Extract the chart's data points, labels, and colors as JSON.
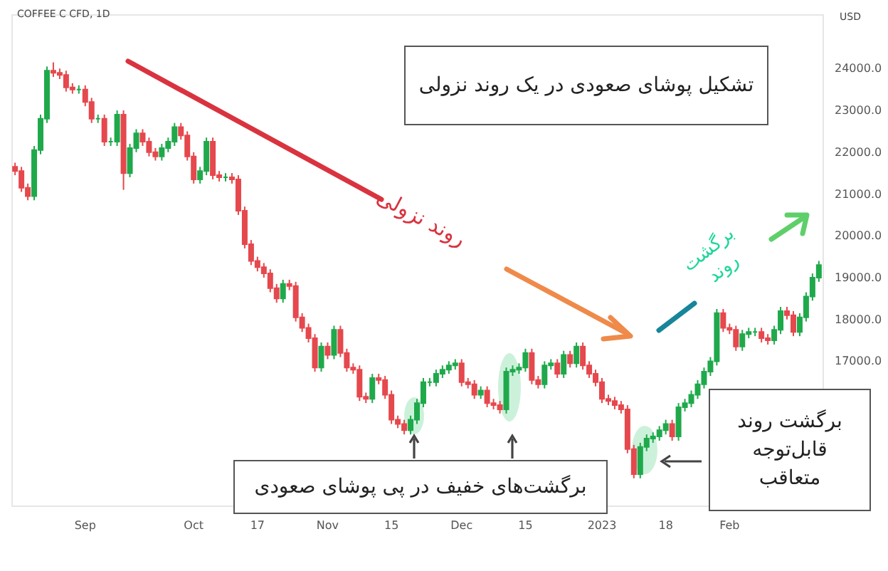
{
  "chart_data": {
    "type": "candlestick",
    "title": "COFFEE C CFD, 1D",
    "ylabel": "USD",
    "categories": [
      null,
      null,
      null,
      null,
      null,
      null,
      null,
      null,
      null,
      null,
      null,
      "Sep",
      null,
      null,
      null,
      null,
      null,
      null,
      null,
      null,
      null,
      null,
      null,
      null,
      null,
      null,
      null,
      null,
      "Oct",
      null,
      null,
      null,
      null,
      null,
      null,
      null,
      null,
      null,
      "17",
      null,
      null,
      null,
      null,
      null,
      null,
      null,
      null,
      null,
      null,
      "Nov",
      null,
      null,
      null,
      null,
      null,
      null,
      null,
      null,
      null,
      "15",
      null,
      null,
      null,
      null,
      null,
      null,
      null,
      null,
      null,
      null,
      "Dec",
      null,
      null,
      null,
      null,
      null,
      null,
      null,
      null,
      null,
      "15",
      null,
      null,
      null,
      null,
      null,
      null,
      null,
      null,
      null,
      null,
      null,
      "2023",
      null,
      null,
      null,
      null,
      null,
      null,
      null,
      null,
      null,
      "18",
      null,
      null,
      null,
      null,
      null,
      null,
      null,
      null,
      null,
      "Feb",
      null,
      null,
      null,
      null,
      null,
      null,
      null,
      null,
      null,
      null,
      null,
      null,
      null,
      null
    ],
    "ohlc": [
      [
        21650,
        21750,
        21450,
        21550
      ],
      [
        21550,
        21650,
        21050,
        21150
      ],
      [
        21150,
        21250,
        20850,
        20950
      ],
      [
        20950,
        22150,
        20850,
        22050
      ],
      [
        22050,
        22900,
        21950,
        22800
      ],
      [
        22800,
        24050,
        22700,
        23950
      ],
      [
        23950,
        24150,
        23800,
        23900
      ],
      [
        23900,
        24000,
        23750,
        23850
      ],
      [
        23850,
        23950,
        23450,
        23550
      ],
      [
        23550,
        23650,
        23400,
        23500
      ],
      [
        23500,
        23600,
        23400,
        23500
      ],
      [
        23500,
        23600,
        23100,
        23200
      ],
      [
        23200,
        23300,
        22700,
        22800
      ],
      [
        22800,
        22900,
        22700,
        22800
      ],
      [
        22800,
        22900,
        22150,
        22250
      ],
      [
        22250,
        22350,
        22150,
        22250
      ],
      [
        22250,
        23000,
        22150,
        22900
      ],
      [
        22900,
        23000,
        21100,
        21500
      ],
      [
        21500,
        22200,
        21400,
        22100
      ],
      [
        22100,
        22550,
        22000,
        22450
      ],
      [
        22450,
        22550,
        22150,
        22250
      ],
      [
        22250,
        22350,
        21900,
        22000
      ],
      [
        22000,
        22100,
        21800,
        21900
      ],
      [
        21900,
        22200,
        21800,
        22100
      ],
      [
        22100,
        22350,
        22000,
        22250
      ],
      [
        22250,
        22700,
        22150,
        22600
      ],
      [
        22600,
        22700,
        22300,
        22400
      ],
      [
        22400,
        22500,
        21800,
        21900
      ],
      [
        21900,
        22000,
        21250,
        21350
      ],
      [
        21350,
        21650,
        21250,
        21550
      ],
      [
        21550,
        22350,
        21450,
        22250
      ],
      [
        22250,
        22350,
        21350,
        21450
      ],
      [
        21450,
        21550,
        21300,
        21400
      ],
      [
        21400,
        21500,
        21300,
        21400
      ],
      [
        21400,
        21500,
        21250,
        21350
      ],
      [
        21350,
        21450,
        20500,
        20600
      ],
      [
        20600,
        20700,
        19700,
        19800
      ],
      [
        19800,
        19900,
        19300,
        19400
      ],
      [
        19400,
        19500,
        19150,
        19250
      ],
      [
        19250,
        19350,
        19000,
        19100
      ],
      [
        19100,
        19200,
        18650,
        18750
      ],
      [
        18750,
        18850,
        18400,
        18500
      ],
      [
        18500,
        18950,
        18400,
        18850
      ],
      [
        18850,
        18950,
        18700,
        18800
      ],
      [
        18800,
        18900,
        17950,
        18050
      ],
      [
        18050,
        18150,
        17700,
        17800
      ],
      [
        17800,
        17900,
        17450,
        17550
      ],
      [
        17550,
        17650,
        16750,
        16850
      ],
      [
        16850,
        17450,
        16750,
        17350
      ],
      [
        17350,
        17450,
        17050,
        17150
      ],
      [
        17150,
        17850,
        17050,
        17750
      ],
      [
        17750,
        17850,
        17100,
        17200
      ],
      [
        17200,
        17300,
        16750,
        16850
      ],
      [
        16850,
        16950,
        16700,
        16800
      ],
      [
        16800,
        16900,
        16050,
        16150
      ],
      [
        16150,
        16250,
        16000,
        16100
      ],
      [
        16100,
        16700,
        16000,
        16600
      ],
      [
        16600,
        16700,
        16450,
        16550
      ],
      [
        16550,
        16650,
        16100,
        16200
      ],
      [
        16200,
        16300,
        15500,
        15600
      ],
      [
        15600,
        15700,
        15400,
        15500
      ],
      [
        15500,
        15600,
        15250,
        15350
      ],
      [
        15350,
        15700,
        15250,
        15600
      ],
      [
        15600,
        16100,
        15500,
        16000
      ],
      [
        16000,
        16600,
        15900,
        16500
      ],
      [
        16500,
        16600,
        16400,
        16500
      ],
      [
        16500,
        16800,
        16400,
        16700
      ],
      [
        16700,
        16900,
        16600,
        16800
      ],
      [
        16800,
        17000,
        16700,
        16900
      ],
      [
        16900,
        17050,
        16800,
        16950
      ],
      [
        16950,
        17050,
        16400,
        16500
      ],
      [
        16500,
        16600,
        16350,
        16450
      ],
      [
        16450,
        16550,
        16100,
        16200
      ],
      [
        16200,
        16400,
        16100,
        16300
      ],
      [
        16300,
        16400,
        15900,
        16000
      ],
      [
        16000,
        16100,
        15850,
        15950
      ],
      [
        15950,
        16050,
        15750,
        15850
      ],
      [
        15850,
        16850,
        15750,
        16750
      ],
      [
        16750,
        16900,
        16650,
        16800
      ],
      [
        16800,
        16950,
        16700,
        16850
      ],
      [
        16850,
        17300,
        16750,
        17200
      ],
      [
        17200,
        17300,
        16450,
        16550
      ],
      [
        16550,
        16650,
        16350,
        16450
      ],
      [
        16450,
        17000,
        16350,
        16900
      ],
      [
        16900,
        17050,
        16800,
        16950
      ],
      [
        16950,
        17050,
        16600,
        16700
      ],
      [
        16700,
        17250,
        16600,
        17150
      ],
      [
        17150,
        17250,
        16850,
        16950
      ],
      [
        16950,
        17450,
        16850,
        17350
      ],
      [
        17350,
        17450,
        16800,
        16900
      ],
      [
        16900,
        17000,
        16600,
        16700
      ],
      [
        16700,
        16800,
        16400,
        16500
      ],
      [
        16500,
        16600,
        16000,
        16100
      ],
      [
        16100,
        16200,
        15950,
        16050
      ],
      [
        16050,
        16150,
        15850,
        15950
      ],
      [
        15950,
        16050,
        15750,
        15850
      ],
      [
        15850,
        15950,
        14800,
        14900
      ],
      [
        14900,
        15000,
        14200,
        14300
      ],
      [
        14300,
        15050,
        14200,
        14950
      ],
      [
        14950,
        15250,
        14850,
        15150
      ],
      [
        15150,
        15300,
        15050,
        15200
      ],
      [
        15200,
        15450,
        15100,
        15350
      ],
      [
        15350,
        15600,
        15250,
        15500
      ],
      [
        15500,
        15600,
        15100,
        15200
      ],
      [
        15200,
        16000,
        15100,
        15900
      ],
      [
        15900,
        16100,
        15800,
        16000
      ],
      [
        16000,
        16300,
        15900,
        16200
      ],
      [
        16200,
        16550,
        16100,
        16450
      ],
      [
        16450,
        16850,
        16350,
        16750
      ],
      [
        16750,
        17100,
        16650,
        17000
      ],
      [
        17000,
        18250,
        16900,
        18150
      ],
      [
        18150,
        18250,
        17700,
        17800
      ],
      [
        17800,
        17900,
        17650,
        17750
      ],
      [
        17750,
        17850,
        17250,
        17350
      ],
      [
        17350,
        17750,
        17250,
        17650
      ],
      [
        17650,
        17800,
        17550,
        17700
      ],
      [
        17700,
        17800,
        17600,
        17700
      ],
      [
        17700,
        17800,
        17450,
        17550
      ],
      [
        17550,
        17650,
        17400,
        17500
      ],
      [
        17500,
        17850,
        17400,
        17750
      ],
      [
        17750,
        18300,
        17650,
        18200
      ],
      [
        18200,
        18300,
        18000,
        18100
      ],
      [
        18100,
        18200,
        17600,
        17700
      ],
      [
        17700,
        18150,
        17600,
        18050
      ],
      [
        18050,
        18650,
        17950,
        18550
      ],
      [
        18550,
        19100,
        18450,
        19000
      ],
      [
        19000,
        19400,
        18900,
        19300
      ]
    ],
    "colors": [
      "#e5484d",
      "#e5484d",
      "#e5484d",
      "#1fa94b",
      "#1fa94b",
      "#1fa94b",
      "#e5484d",
      "#e5484d",
      "#e5484d",
      "#e5484d",
      "#1fa94b",
      "#e5484d",
      "#e5484d",
      "#1fa94b",
      "#e5484d",
      "#1fa94b",
      "#1fa94b",
      "#e5484d",
      "#1fa94b",
      "#1fa94b",
      "#e5484d",
      "#e5484d",
      "#e5484d",
      "#1fa94b",
      "#1fa94b",
      "#1fa94b",
      "#e5484d",
      "#e5484d",
      "#e5484d",
      "#1fa94b",
      "#1fa94b",
      "#e5484d",
      "#e5484d",
      "#1fa94b",
      "#e5484d",
      "#e5484d",
      "#e5484d",
      "#e5484d",
      "#e5484d",
      "#e5484d",
      "#e5484d",
      "#e5484d",
      "#1fa94b",
      "#e5484d",
      "#e5484d",
      "#e5484d",
      "#e5484d",
      "#e5484d",
      "#1fa94b",
      "#e5484d",
      "#1fa94b",
      "#e5484d",
      "#e5484d",
      "#e5484d",
      "#e5484d",
      "#e5484d",
      "#1fa94b",
      "#e5484d",
      "#e5484d",
      "#e5484d",
      "#e5484d",
      "#e5484d",
      "#1fa94b",
      "#1fa94b",
      "#1fa94b",
      "#1fa94b",
      "#1fa94b",
      "#1fa94b",
      "#1fa94b",
      "#1fa94b",
      "#e5484d",
      "#e5484d",
      "#e5484d",
      "#1fa94b",
      "#e5484d",
      "#e5484d",
      "#e5484d",
      "#1fa94b",
      "#1fa94b",
      "#1fa94b",
      "#1fa94b",
      "#e5484d",
      "#e5484d",
      "#1fa94b",
      "#1fa94b",
      "#e5484d",
      "#1fa94b",
      "#e5484d",
      "#1fa94b",
      "#e5484d",
      "#e5484d",
      "#e5484d",
      "#e5484d",
      "#e5484d",
      "#e5484d",
      "#e5484d",
      "#e5484d",
      "#e5484d",
      "#1fa94b",
      "#1fa94b",
      "#1fa94b",
      "#1fa94b",
      "#1fa94b",
      "#e5484d",
      "#1fa94b",
      "#1fa94b",
      "#1fa94b",
      "#1fa94b",
      "#1fa94b",
      "#1fa94b",
      "#1fa94b",
      "#e5484d",
      "#e5484d",
      "#e5484d",
      "#1fa94b",
      "#1fa94b",
      "#1fa94b",
      "#e5484d",
      "#e5484d",
      "#1fa94b",
      "#1fa94b",
      "#e5484d",
      "#e5484d",
      "#1fa94b",
      "#1fa94b",
      "#1fa94b",
      "#1fa94b"
    ],
    "ylim": [
      13550,
      25300
    ],
    "yticks": [
      {
        "value": 17000,
        "label": "17000.0"
      },
      {
        "value": 18000,
        "label": "18000.0"
      },
      {
        "value": 19000,
        "label": "19000.0"
      },
      {
        "value": 20000,
        "label": "20000.0"
      },
      {
        "value": 21000,
        "label": "21000.0"
      },
      {
        "value": 22000,
        "label": "22000.0"
      },
      {
        "value": 23000,
        "label": "23000.0"
      },
      {
        "value": 24000,
        "label": "24000.0"
      }
    ],
    "grid": false,
    "annotations": [
      "تشکیل پوشای صعودی در یک روند نزولی",
      "روند نزولی",
      "برگشت روند",
      "برگشت‌های خفیف در پی پوشای صعودی",
      "برگشت روند قابل‌توجه متعاقب"
    ]
  }
}
